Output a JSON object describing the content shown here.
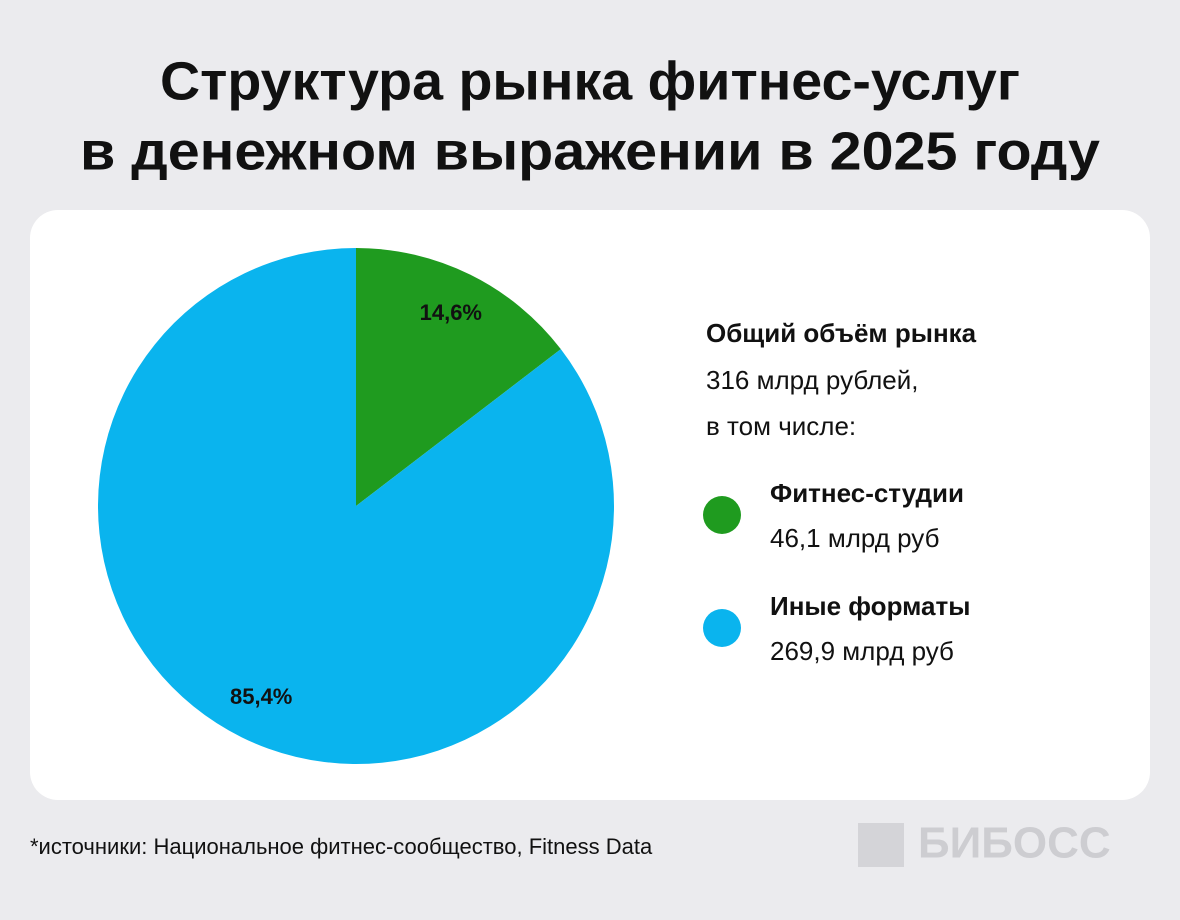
{
  "chart_data": {
    "type": "pie",
    "title": [
      "Структура рынка фитнес-услуг",
      "в денежном выражении в 2025 году"
    ],
    "categories": [
      "Фитнес-студии",
      "Иные форматы"
    ],
    "values": [
      14.6,
      85.4
    ],
    "value_labels": [
      "14,6%",
      "85,4%"
    ],
    "colors": [
      "#1f9b1f",
      "#0ab4ee"
    ],
    "legend_details": [
      "46,1 млрд руб",
      "269,9 млрд руб"
    ],
    "summary": {
      "title": "Общий объём рынка",
      "lines": [
        "316 млрд рублей,",
        "в том числе:"
      ]
    }
  },
  "source": "*источники: Национальное фитнес-сообщество, Fitness Data",
  "logo": "БИБОСС"
}
